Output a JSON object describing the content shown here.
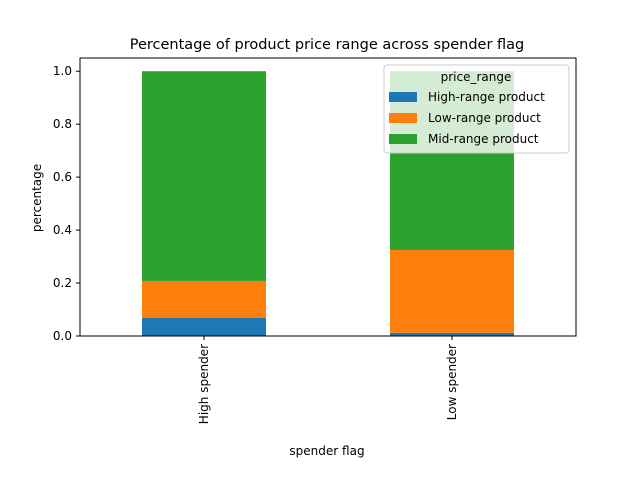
{
  "chart_data": {
    "type": "bar",
    "stacked": true,
    "title": "Percentage of product price range across spender flag",
    "xlabel": "spender flag",
    "ylabel": "percentage",
    "categories": [
      "High spender",
      "Low spender"
    ],
    "series": [
      {
        "name": "High-range product",
        "values": [
          0.068,
          0.012
        ],
        "color": "#1f77b4"
      },
      {
        "name": "Low-range product",
        "values": [
          0.14,
          0.313
        ],
        "color": "#ff7f0e"
      },
      {
        "name": "Mid-range product",
        "values": [
          0.792,
          0.675
        ],
        "color": "#2ca02c"
      }
    ],
    "ylim": [
      0,
      1.05
    ],
    "yticks": [
      0.0,
      0.2,
      0.4,
      0.6,
      0.8,
      1.0
    ],
    "ytick_labels": [
      "0.0",
      "0.2",
      "0.4",
      "0.6",
      "0.8",
      "1.0"
    ],
    "legend": {
      "title": "price_range",
      "placement": "upper right"
    },
    "grid": false
  }
}
